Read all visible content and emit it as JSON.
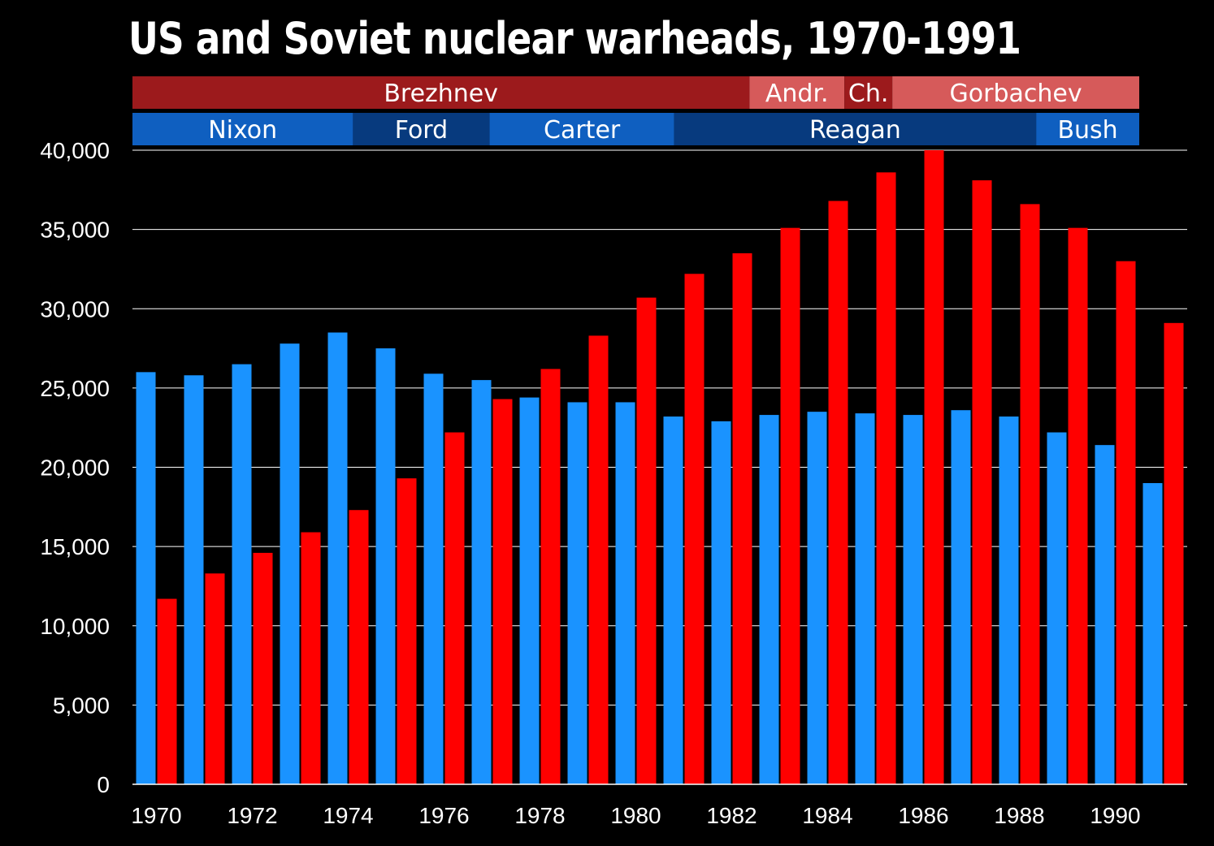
{
  "chart_data": {
    "type": "bar",
    "title": "US and Soviet nuclear warheads, 1970-1991",
    "xlabel": "",
    "ylabel": "",
    "ylim": [
      0,
      40000
    ],
    "grid": true,
    "years": [
      "1970",
      "1971",
      "1972",
      "1973",
      "1974",
      "1975",
      "1976",
      "1977",
      "1978",
      "1979",
      "1980",
      "1981",
      "1982",
      "1983",
      "1984",
      "1985",
      "1986",
      "1987",
      "1988",
      "1989",
      "1990",
      "1991"
    ],
    "x_tick_labels": [
      "1970",
      "1972",
      "1974",
      "1976",
      "1978",
      "1980",
      "1982",
      "1984",
      "1986",
      "1988",
      "1990"
    ],
    "y_tick_labels": [
      "0",
      "5,000",
      "10,000",
      "15,000",
      "20,000",
      "25,000",
      "30,000",
      "35,000",
      "40,000"
    ],
    "series": [
      {
        "name": "US",
        "color": "#1a93ff",
        "values": [
          26000,
          25800,
          26500,
          27800,
          28500,
          27500,
          25900,
          25500,
          24400,
          24100,
          24100,
          23200,
          22900,
          23300,
          23500,
          23400,
          23300,
          23600,
          23200,
          22200,
          21400,
          19000
        ]
      },
      {
        "name": "Soviet",
        "color": "#ff0000",
        "values": [
          11700,
          13300,
          14600,
          15900,
          17300,
          19300,
          22200,
          24300,
          26200,
          28300,
          30700,
          32200,
          33500,
          35100,
          36800,
          38600,
          40000,
          38100,
          36600,
          35100,
          33000,
          29100
        ]
      }
    ],
    "leader_bands": {
      "soviet": [
        {
          "label": "Brezhnev",
          "start": 1970,
          "end": 1982.87,
          "color": "#9c1a1c"
        },
        {
          "label": "Andr.",
          "start": 1982.87,
          "end": 1984.85,
          "color": "#d65a5a"
        },
        {
          "label": "Ch.",
          "start": 1984.85,
          "end": 1985.85,
          "color": "#9c1a1c"
        },
        {
          "label": "Gorbachev",
          "start": 1985.85,
          "end": 1991,
          "color": "#d65a5a"
        }
      ],
      "us": [
        {
          "label": "Nixon",
          "start": 1970,
          "end": 1974.6,
          "color": "#0f5fc0"
        },
        {
          "label": "Ford",
          "start": 1974.6,
          "end": 1977.45,
          "color": "#073a7e"
        },
        {
          "label": "Carter",
          "start": 1977.45,
          "end": 1981.3,
          "color": "#0f5fc0"
        },
        {
          "label": "Reagan",
          "start": 1981.3,
          "end": 1988.85,
          "color": "#073a7e"
        },
        {
          "label": "Bush",
          "start": 1988.85,
          "end": 1991,
          "color": "#0f5fc0"
        }
      ]
    },
    "colors": {
      "background": "#000000",
      "grid": "#ffffff",
      "text": "#ffffff"
    }
  }
}
